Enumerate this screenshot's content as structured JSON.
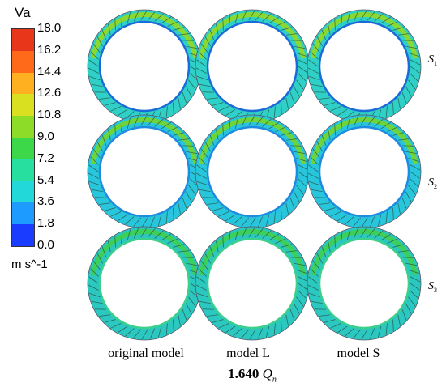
{
  "colorbar": {
    "title": "Va",
    "unit": "m s^-1",
    "ticks": [
      "18.0",
      "16.2",
      "14.4",
      "12.6",
      "10.8",
      "9.0",
      "7.2",
      "5.4",
      "3.6",
      "1.8",
      "0.0"
    ],
    "colors": [
      "#1a3cff",
      "#1e9bff",
      "#22d8d8",
      "#27e0a0",
      "#3cd84a",
      "#8cdc28",
      "#d8e020",
      "#ffb020",
      "#ff6a1a",
      "#e8361a"
    ]
  },
  "columns": [
    "original model",
    "model L",
    "model S"
  ],
  "sections": [
    {
      "letter": "S",
      "sub": "1"
    },
    {
      "letter": "S",
      "sub": "2"
    },
    {
      "letter": "S",
      "sub": "3"
    }
  ],
  "caption": {
    "value": "1.640",
    "symbol": "Q",
    "sub": "n"
  }
}
